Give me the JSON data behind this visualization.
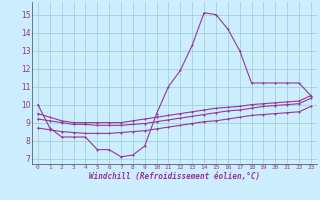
{
  "xlabel": "Windchill (Refroidissement éolien,°C)",
  "bg_color": "#cceeff",
  "grid_color": "#99cccc",
  "line_color": "#993399",
  "xlim": [
    -0.5,
    23.5
  ],
  "ylim": [
    6.7,
    15.7
  ],
  "xticks": [
    0,
    1,
    2,
    3,
    4,
    5,
    6,
    7,
    8,
    9,
    10,
    11,
    12,
    13,
    14,
    15,
    16,
    17,
    18,
    19,
    20,
    21,
    22,
    23
  ],
  "yticks": [
    7,
    8,
    9,
    10,
    11,
    12,
    13,
    14,
    15
  ],
  "line1_x": [
    0,
    1,
    2,
    3,
    4,
    5,
    6,
    7,
    8,
    9,
    10,
    11,
    12,
    13,
    14,
    15,
    16,
    17,
    18,
    19,
    20,
    21,
    22,
    23
  ],
  "line1_y": [
    10.0,
    8.7,
    8.2,
    8.2,
    8.2,
    7.5,
    7.5,
    7.1,
    7.2,
    7.7,
    9.5,
    11.0,
    11.9,
    13.3,
    15.1,
    15.0,
    14.2,
    13.0,
    11.2,
    11.2,
    11.2,
    11.2,
    11.2,
    10.5
  ],
  "line2_x": [
    0,
    1,
    2,
    3,
    4,
    5,
    6,
    7,
    8,
    9,
    10,
    11,
    12,
    13,
    14,
    15,
    16,
    17,
    18,
    19,
    20,
    21,
    22,
    23
  ],
  "line2_y": [
    9.5,
    9.3,
    9.1,
    9.0,
    9.0,
    9.0,
    9.0,
    9.0,
    9.1,
    9.2,
    9.3,
    9.4,
    9.5,
    9.6,
    9.7,
    9.8,
    9.85,
    9.9,
    10.0,
    10.05,
    10.1,
    10.15,
    10.2,
    10.5
  ],
  "line3_x": [
    0,
    1,
    2,
    3,
    4,
    5,
    6,
    7,
    8,
    9,
    10,
    11,
    12,
    13,
    14,
    15,
    16,
    17,
    18,
    19,
    20,
    21,
    22,
    23
  ],
  "line3_y": [
    9.2,
    9.1,
    9.0,
    8.9,
    8.9,
    8.85,
    8.85,
    8.85,
    8.9,
    8.95,
    9.05,
    9.15,
    9.25,
    9.35,
    9.45,
    9.55,
    9.65,
    9.7,
    9.8,
    9.9,
    9.95,
    10.0,
    10.05,
    10.35
  ],
  "line4_x": [
    0,
    1,
    2,
    3,
    4,
    5,
    6,
    7,
    8,
    9,
    10,
    11,
    12,
    13,
    14,
    15,
    16,
    17,
    18,
    19,
    20,
    21,
    22,
    23
  ],
  "line4_y": [
    8.7,
    8.6,
    8.5,
    8.45,
    8.4,
    8.4,
    8.4,
    8.45,
    8.5,
    8.55,
    8.65,
    8.75,
    8.85,
    8.95,
    9.05,
    9.1,
    9.2,
    9.3,
    9.4,
    9.45,
    9.5,
    9.55,
    9.6,
    9.9
  ]
}
